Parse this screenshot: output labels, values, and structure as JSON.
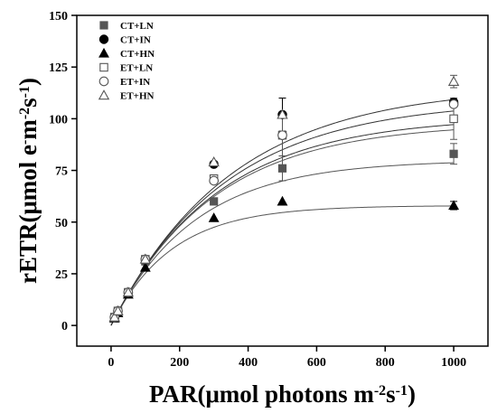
{
  "chart_data": {
    "type": "scatter",
    "xlabel": {
      "parts": [
        {
          "t": "PAR(μmol photons m",
          "sup": false
        },
        {
          "t": "-2",
          "sup": true
        },
        {
          "t": "s",
          "sup": false
        },
        {
          "t": "-1",
          "sup": true
        },
        {
          "t": ")",
          "sup": false
        }
      ]
    },
    "ylabel": {
      "parts": [
        {
          "t": "rETR(μmol e",
          "sup": false
        },
        {
          "t": "-",
          "sup": true
        },
        {
          "t": "m",
          "sup": false
        },
        {
          "t": "-2",
          "sup": true
        },
        {
          "t": "s",
          "sup": false
        },
        {
          "t": "-1",
          "sup": true
        },
        {
          "t": ")",
          "sup": false
        }
      ]
    },
    "xlim": [
      -100,
      1100
    ],
    "ylim": [
      -10,
      150
    ],
    "xticks": [
      0,
      200,
      400,
      600,
      800,
      1000
    ],
    "yticks": [
      0,
      25,
      50,
      75,
      100,
      125,
      150
    ],
    "x": [
      10,
      20,
      50,
      100,
      300,
      500,
      1000
    ],
    "legend_position": "top-left",
    "series": [
      {
        "name": "CT+LN",
        "marker": "square-filled",
        "color": "#555555",
        "values": [
          3.5,
          6.5,
          16,
          31,
          60,
          76,
          83
        ],
        "errors": [
          0,
          0,
          0,
          0,
          0,
          6,
          5
        ],
        "fit": {
          "pmax": 80,
          "alpha": 0.33
        }
      },
      {
        "name": "CT+IN",
        "marker": "circle-filled",
        "color": "#000000",
        "values": [
          4,
          7,
          16,
          32,
          78,
          102,
          108
        ],
        "errors": [
          0,
          0,
          0,
          0,
          0,
          8,
          0
        ],
        "fit": {
          "pmax": 109,
          "alpha": 0.33
        }
      },
      {
        "name": "CT+HN",
        "marker": "triangle-filled",
        "color": "#000000",
        "values": [
          3.5,
          6,
          15,
          28,
          52,
          60,
          58
        ],
        "errors": [
          0,
          0,
          0,
          0,
          0,
          0,
          2
        ],
        "fit": {
          "pmax": 58,
          "alpha": 0.33
        }
      },
      {
        "name": "ET+LN",
        "marker": "square-open",
        "color": "#555555",
        "values": [
          4,
          7,
          16,
          32,
          71,
          92,
          100
        ],
        "errors": [
          0,
          0,
          0,
          0,
          0,
          10,
          10
        ],
        "fit": {
          "pmax": 101,
          "alpha": 0.33
        }
      },
      {
        "name": "ET+IN",
        "marker": "circle-open",
        "color": "#555555",
        "values": [
          4,
          7,
          16,
          32,
          70,
          92,
          107
        ],
        "errors": [
          0,
          0,
          0,
          0,
          0,
          0,
          0
        ],
        "fit": {
          "pmax": 98,
          "alpha": 0.33
        }
      },
      {
        "name": "ET+HN",
        "marker": "triangle-open",
        "color": "#555555",
        "values": [
          4,
          7,
          16,
          32,
          79,
          102,
          118
        ],
        "errors": [
          0,
          0,
          0,
          0,
          0,
          0,
          3
        ],
        "fit": {
          "pmax": 116,
          "alpha": 0.33
        }
      }
    ]
  }
}
